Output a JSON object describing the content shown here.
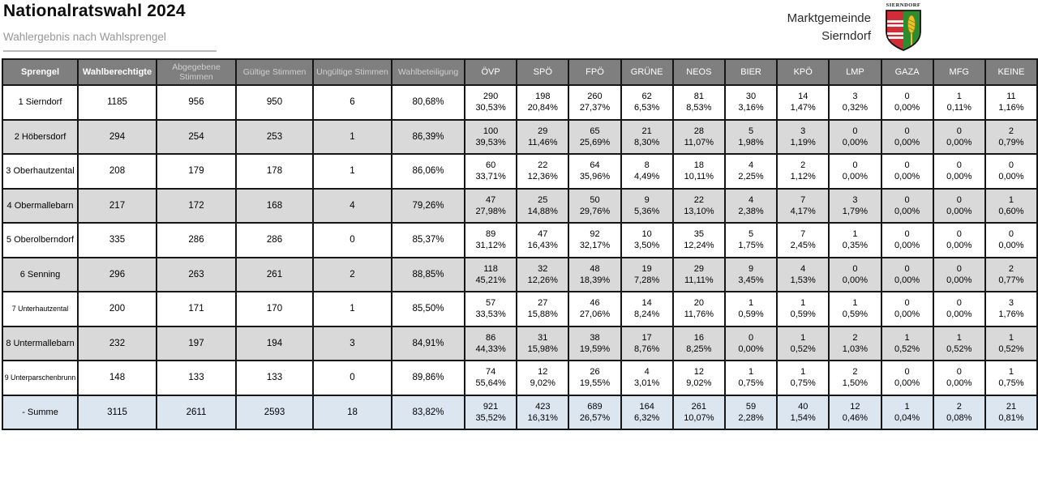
{
  "page": {
    "title": "Nationalratswahl 2024",
    "subtitle": "Wahlergebnis nach Wahlsprengel",
    "org_line1": "Marktgemeinde",
    "org_line2": "Sierndorf",
    "crest_label": "SIERNDORF"
  },
  "colors": {
    "header_bg": "#7f7f7f",
    "alt_row_bg": "#d9d9d9",
    "sum_row_bg": "#dce6f1",
    "crest_red": "#cf2e39",
    "crest_green": "#2e8b2e",
    "crest_gold": "#e8c42a"
  },
  "table": {
    "columns": [
      "Sprengel",
      "Wahlberechtigte",
      "Abgegebene Stimmen",
      "Gültige Stimmen",
      "Ungültige Stimmen",
      "Wahlbeteiligung"
    ],
    "parties": [
      "ÖVP",
      "SPÖ",
      "FPÖ",
      "GRÜNE",
      "NEOS",
      "BIER",
      "KPÖ",
      "LMP",
      "GAZA",
      "MFG",
      "KEINE"
    ],
    "rows": [
      {
        "name": "1 Sierndorf",
        "eligible": "1185",
        "cast": "956",
        "valid": "950",
        "invalid": "6",
        "turnout": "80,68%",
        "results": [
          [
            "290",
            "30,53%"
          ],
          [
            "198",
            "20,84%"
          ],
          [
            "260",
            "27,37%"
          ],
          [
            "62",
            "6,53%"
          ],
          [
            "81",
            "8,53%"
          ],
          [
            "30",
            "3,16%"
          ],
          [
            "14",
            "1,47%"
          ],
          [
            "3",
            "0,32%"
          ],
          [
            "0",
            "0,00%"
          ],
          [
            "1",
            "0,11%"
          ],
          [
            "11",
            "1,16%"
          ]
        ]
      },
      {
        "name": "2 Höbersdorf",
        "eligible": "294",
        "cast": "254",
        "valid": "253",
        "invalid": "1",
        "turnout": "86,39%",
        "results": [
          [
            "100",
            "39,53%"
          ],
          [
            "29",
            "11,46%"
          ],
          [
            "65",
            "25,69%"
          ],
          [
            "21",
            "8,30%"
          ],
          [
            "28",
            "11,07%"
          ],
          [
            "5",
            "1,98%"
          ],
          [
            "3",
            "1,19%"
          ],
          [
            "0",
            "0,00%"
          ],
          [
            "0",
            "0,00%"
          ],
          [
            "0",
            "0,00%"
          ],
          [
            "2",
            "0,79%"
          ]
        ]
      },
      {
        "name": "3 Oberhautzental",
        "eligible": "208",
        "cast": "179",
        "valid": "178",
        "invalid": "1",
        "turnout": "86,06%",
        "results": [
          [
            "60",
            "33,71%"
          ],
          [
            "22",
            "12,36%"
          ],
          [
            "64",
            "35,96%"
          ],
          [
            "8",
            "4,49%"
          ],
          [
            "18",
            "10,11%"
          ],
          [
            "4",
            "2,25%"
          ],
          [
            "2",
            "1,12%"
          ],
          [
            "0",
            "0,00%"
          ],
          [
            "0",
            "0,00%"
          ],
          [
            "0",
            "0,00%"
          ],
          [
            "0",
            "0,00%"
          ]
        ]
      },
      {
        "name": "4 Obermallebarn",
        "eligible": "217",
        "cast": "172",
        "valid": "168",
        "invalid": "4",
        "turnout": "79,26%",
        "results": [
          [
            "47",
            "27,98%"
          ],
          [
            "25",
            "14,88%"
          ],
          [
            "50",
            "29,76%"
          ],
          [
            "9",
            "5,36%"
          ],
          [
            "22",
            "13,10%"
          ],
          [
            "4",
            "2,38%"
          ],
          [
            "7",
            "4,17%"
          ],
          [
            "3",
            "1,79%"
          ],
          [
            "0",
            "0,00%"
          ],
          [
            "0",
            "0,00%"
          ],
          [
            "1",
            "0,60%"
          ]
        ]
      },
      {
        "name": "5 Oberolberndorf",
        "eligible": "335",
        "cast": "286",
        "valid": "286",
        "invalid": "0",
        "turnout": "85,37%",
        "results": [
          [
            "89",
            "31,12%"
          ],
          [
            "47",
            "16,43%"
          ],
          [
            "92",
            "32,17%"
          ],
          [
            "10",
            "3,50%"
          ],
          [
            "35",
            "12,24%"
          ],
          [
            "5",
            "1,75%"
          ],
          [
            "7",
            "2,45%"
          ],
          [
            "1",
            "0,35%"
          ],
          [
            "0",
            "0,00%"
          ],
          [
            "0",
            "0,00%"
          ],
          [
            "0",
            "0,00%"
          ]
        ]
      },
      {
        "name": "6 Senning",
        "eligible": "296",
        "cast": "263",
        "valid": "261",
        "invalid": "2",
        "turnout": "88,85%",
        "results": [
          [
            "118",
            "45,21%"
          ],
          [
            "32",
            "12,26%"
          ],
          [
            "48",
            "18,39%"
          ],
          [
            "19",
            "7,28%"
          ],
          [
            "29",
            "11,11%"
          ],
          [
            "9",
            "3,45%"
          ],
          [
            "4",
            "1,53%"
          ],
          [
            "0",
            "0,00%"
          ],
          [
            "0",
            "0,00%"
          ],
          [
            "0",
            "0,00%"
          ],
          [
            "2",
            "0,77%"
          ]
        ]
      },
      {
        "name": "7 Unterhautzental",
        "eligible": "200",
        "cast": "171",
        "valid": "170",
        "invalid": "1",
        "turnout": "85,50%",
        "results": [
          [
            "57",
            "33,53%"
          ],
          [
            "27",
            "15,88%"
          ],
          [
            "46",
            "27,06%"
          ],
          [
            "14",
            "8,24%"
          ],
          [
            "20",
            "11,76%"
          ],
          [
            "1",
            "0,59%"
          ],
          [
            "1",
            "0,59%"
          ],
          [
            "1",
            "0,59%"
          ],
          [
            "0",
            "0,00%"
          ],
          [
            "0",
            "0,00%"
          ],
          [
            "3",
            "1,76%"
          ]
        ]
      },
      {
        "name": "8 Untermallebarn",
        "eligible": "232",
        "cast": "197",
        "valid": "194",
        "invalid": "3",
        "turnout": "84,91%",
        "results": [
          [
            "86",
            "44,33%"
          ],
          [
            "31",
            "15,98%"
          ],
          [
            "38",
            "19,59%"
          ],
          [
            "17",
            "8,76%"
          ],
          [
            "16",
            "8,25%"
          ],
          [
            "0",
            "0,00%"
          ],
          [
            "1",
            "0,52%"
          ],
          [
            "2",
            "1,03%"
          ],
          [
            "1",
            "0,52%"
          ],
          [
            "1",
            "0,52%"
          ],
          [
            "1",
            "0,52%"
          ]
        ]
      },
      {
        "name": "9 Unterparschenbrunn",
        "eligible": "148",
        "cast": "133",
        "valid": "133",
        "invalid": "0",
        "turnout": "89,86%",
        "results": [
          [
            "74",
            "55,64%"
          ],
          [
            "12",
            "9,02%"
          ],
          [
            "26",
            "19,55%"
          ],
          [
            "4",
            "3,01%"
          ],
          [
            "12",
            "9,02%"
          ],
          [
            "1",
            "0,75%"
          ],
          [
            "1",
            "0,75%"
          ],
          [
            "2",
            "1,50%"
          ],
          [
            "0",
            "0,00%"
          ],
          [
            "0",
            "0,00%"
          ],
          [
            "1",
            "0,75%"
          ]
        ]
      }
    ],
    "sum_row": {
      "name": "- Summe",
      "eligible": "3115",
      "cast": "2611",
      "valid": "2593",
      "invalid": "18",
      "turnout": "83,82%",
      "results": [
        [
          "921",
          "35,52%"
        ],
        [
          "423",
          "16,31%"
        ],
        [
          "689",
          "26,57%"
        ],
        [
          "164",
          "6,32%"
        ],
        [
          "261",
          "10,07%"
        ],
        [
          "59",
          "2,28%"
        ],
        [
          "40",
          "1,54%"
        ],
        [
          "12",
          "0,46%"
        ],
        [
          "1",
          "0,04%"
        ],
        [
          "2",
          "0,08%"
        ],
        [
          "21",
          "0,81%"
        ]
      ]
    }
  }
}
